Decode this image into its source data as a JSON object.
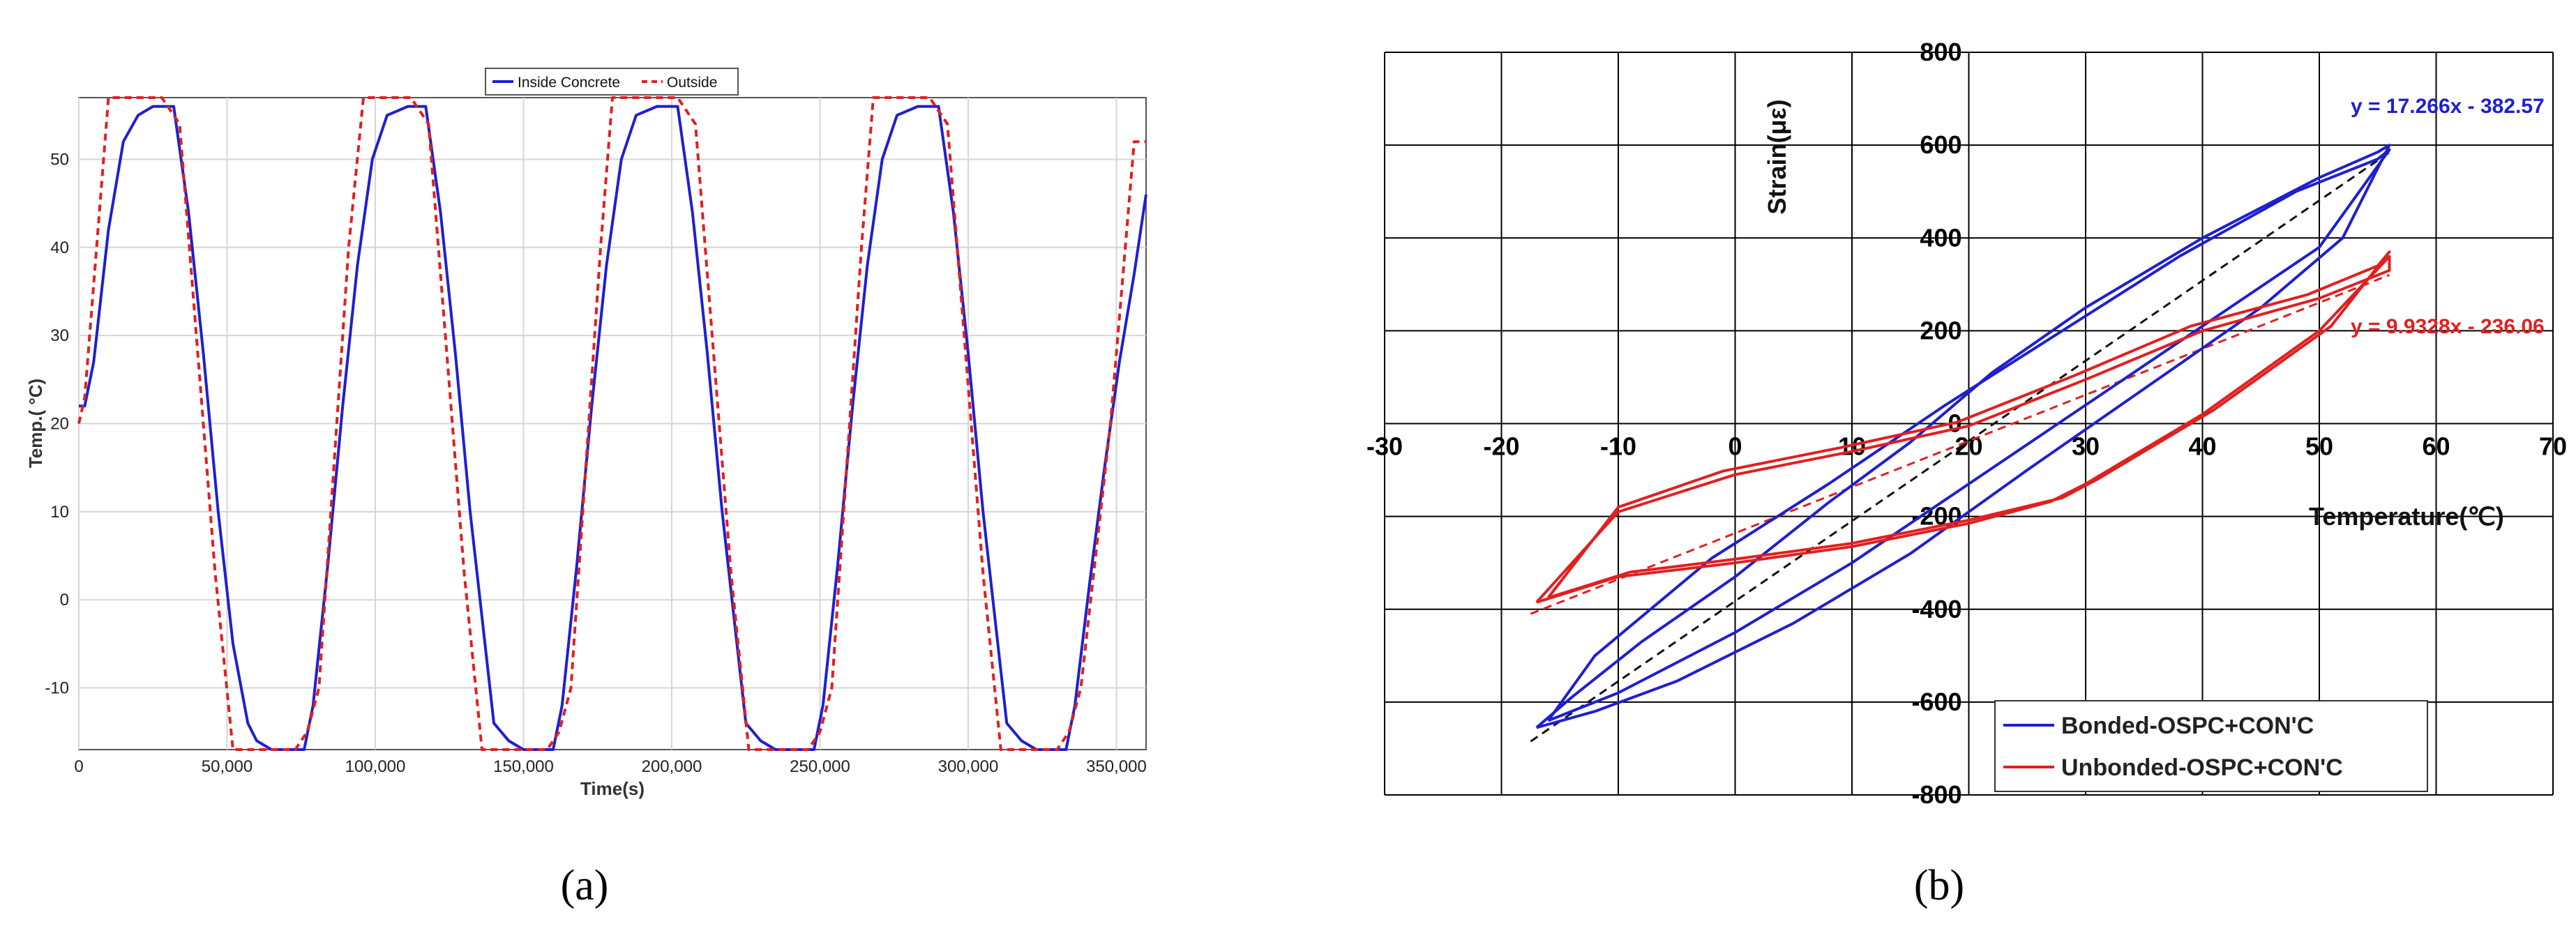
{
  "captions": {
    "a": "(a)",
    "b": "(b)"
  },
  "chart_data": [
    {
      "id": "a",
      "type": "line",
      "xlabel": "Time(s)",
      "ylabel": "Temp.( °C)",
      "xlim": [
        0,
        360000
      ],
      "ylim": [
        -17,
        57
      ],
      "xticks": [
        0,
        50000,
        100000,
        150000,
        200000,
        250000,
        300000,
        350000
      ],
      "xtick_labels": [
        "0",
        "50,000",
        "100,000",
        "150,000",
        "200,000",
        "250,000",
        "300,000",
        "350,000"
      ],
      "yticks": [
        -10,
        0,
        10,
        20,
        30,
        40,
        50
      ],
      "ytick_labels": [
        "-10",
        "0",
        "10",
        "20",
        "30",
        "40",
        "50"
      ],
      "grid": true,
      "legend": "top-right",
      "series": [
        {
          "name": "Inside Concrete",
          "color": "#1f1fd0",
          "style": "solid",
          "x": [
            0,
            2000,
            5000,
            10000,
            15000,
            20000,
            25000,
            32000,
            37000,
            42000,
            47000,
            52000,
            57000,
            60000,
            65000,
            70000,
            76000,
            79000,
            84000,
            89000,
            94000,
            99000,
            104000,
            111000,
            117000,
            122000,
            127000,
            132000,
            137000,
            140000,
            145000,
            150000,
            160000,
            163000,
            168000,
            173000,
            178000,
            183000,
            188000,
            195000,
            202000,
            207000,
            212000,
            217000,
            222000,
            225000,
            230000,
            235000,
            248000,
            251000,
            256000,
            261000,
            266000,
            271000,
            276000,
            283000,
            290000,
            295000,
            300000,
            305000,
            310000,
            313000,
            318000,
            323000,
            333000,
            336000,
            341000,
            346000,
            351000,
            356000,
            360000
          ],
          "y": [
            22,
            22,
            27,
            42,
            52,
            55,
            56,
            56,
            44,
            28,
            10,
            -5,
            -14,
            -16,
            -17,
            -17,
            -17,
            -12,
            4,
            22,
            38,
            50,
            55,
            56,
            56,
            44,
            28,
            10,
            -5,
            -14,
            -16,
            -17,
            -17,
            -12,
            4,
            22,
            38,
            50,
            55,
            56,
            56,
            44,
            28,
            10,
            -5,
            -14,
            -16,
            -17,
            -17,
            -12,
            4,
            22,
            38,
            50,
            55,
            56,
            56,
            44,
            28,
            10,
            -5,
            -14,
            -16,
            -17,
            -17,
            -12,
            2,
            15,
            27,
            37,
            46
          ]
        },
        {
          "name": "Outside",
          "color": "#e02020",
          "style": "dashed",
          "x": [
            0,
            2000,
            10000,
            28000,
            34000,
            46000,
            52000,
            73000,
            77000,
            81000,
            91000,
            96000,
            112000,
            118000,
            130000,
            136000,
            158000,
            162000,
            166000,
            176000,
            180000,
            202000,
            208000,
            220000,
            226000,
            246000,
            250000,
            254000,
            264000,
            268000,
            287000,
            293000,
            305000,
            311000,
            330000,
            334000,
            338000,
            348000,
            352000,
            356000,
            360000
          ],
          "y": [
            20,
            23,
            57,
            57,
            54,
            3,
            -17,
            -17,
            -15,
            -10,
            40,
            57,
            57,
            54,
            3,
            -17,
            -17,
            -15,
            -10,
            40,
            57,
            57,
            54,
            3,
            -17,
            -17,
            -15,
            -10,
            40,
            57,
            57,
            54,
            3,
            -17,
            -17,
            -15,
            -10,
            20,
            36,
            52,
            52
          ]
        }
      ]
    },
    {
      "id": "b",
      "type": "line",
      "xlabel": "Temperature(℃)",
      "ylabel": "Strain(με)",
      "xlim": [
        -30,
        70
      ],
      "ylim": [
        -800,
        800
      ],
      "xticks": [
        -30,
        -20,
        -10,
        0,
        10,
        20,
        30,
        40,
        50,
        60,
        70
      ],
      "xtick_labels": [
        "-30",
        "-20",
        "-10",
        "0",
        "10",
        "20",
        "30",
        "40",
        "50",
        "60",
        "70"
      ],
      "yticks": [
        -800,
        -600,
        -400,
        -200,
        0,
        200,
        400,
        600,
        800
      ],
      "ytick_labels": [
        "-800",
        "-600",
        "-400",
        "-200",
        "0",
        "200",
        "400",
        "600",
        "800"
      ],
      "grid": true,
      "legend": "bottom-right",
      "series": [
        {
          "name": "Bonded-OSPC+CON'C",
          "color": "#1f1fd0",
          "style": "solid",
          "loops": [
            {
              "x": [
                -17,
                -12,
                -5,
                5,
                15,
                25,
                35,
                45,
                52,
                56,
                55,
                50,
                40,
                30,
                22,
                15,
                8,
                0,
                -8,
                -14,
                -17
              ],
              "y": [
                -655,
                -620,
                -555,
                -430,
                -280,
                -100,
                75,
                250,
                400,
                600,
                585,
                530,
                400,
                250,
                110,
                -40,
                -170,
                -330,
                -470,
                -590,
                -655
              ]
            },
            {
              "x": [
                -16,
                -10,
                0,
                10,
                20,
                30,
                40,
                50,
                56,
                55,
                48,
                38,
                28,
                18,
                8,
                -2,
                -12,
                -16
              ],
              "y": [
                -640,
                -580,
                -450,
                -300,
                -130,
                40,
                210,
                380,
                590,
                570,
                500,
                360,
                200,
                40,
                -130,
                -290,
                -500,
                -640
              ]
            }
          ]
        },
        {
          "name": "Unbonded-OSPC+CON'C",
          "color": "#e02020",
          "style": "solid",
          "loops": [
            {
              "x": [
                -17,
                -10,
                0,
                10,
                20,
                27,
                30,
                40,
                50,
                56,
                56,
                50,
                40,
                30,
                20,
                10,
                0,
                -10,
                -17
              ],
              "y": [
                -385,
                -330,
                -300,
                -265,
                -215,
                -168,
                -130,
                20,
                200,
                360,
                330,
                270,
                200,
                95,
                -5,
                -60,
                -110,
                -190,
                -385
              ]
            },
            {
              "x": [
                -16,
                -9,
                0,
                10,
                20,
                28,
                31,
                41,
                51,
                56,
                55,
                49,
                39,
                29,
                19,
                9,
                -1,
                -10,
                -16
              ],
              "y": [
                -375,
                -320,
                -292,
                -258,
                -208,
                -160,
                -120,
                30,
                210,
                370,
                340,
                278,
                210,
                103,
                3,
                -52,
                -102,
                -180,
                -375
              ]
            }
          ]
        }
      ],
      "fits": [
        {
          "label": "y = 17.266x - 382.57",
          "slope": 17.266,
          "intercept": -382.57,
          "x_range": [
            -17.5,
            56
          ],
          "color": "#1f1fd0"
        },
        {
          "label": "y = 9.9328x - 236.06",
          "slope": 9.9328,
          "intercept": -236.06,
          "x_range": [
            -17.5,
            56
          ],
          "color": "#e02020"
        }
      ]
    }
  ]
}
